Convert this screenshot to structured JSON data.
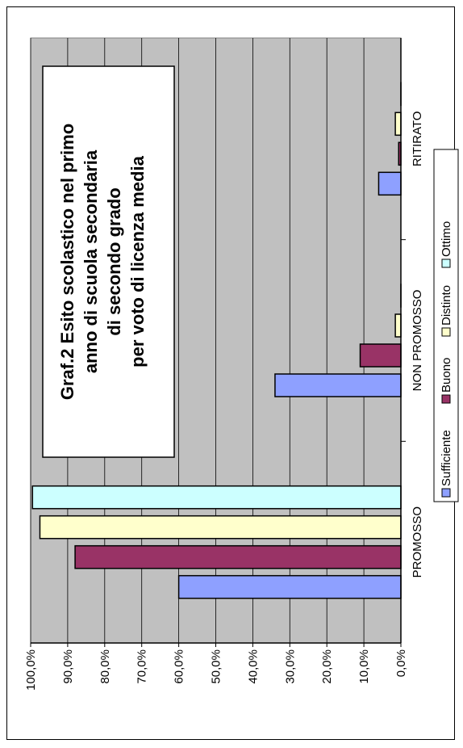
{
  "chart_data": {
    "type": "bar",
    "orientation": "rotated-90",
    "title_lines": [
      "Graf.2 Esito scolastico nel primo",
      "anno di scuola secondaria",
      "di secondo grado",
      "per voto di licenza media"
    ],
    "categories": [
      "PROMOSSO",
      "NON PROMOSSO",
      "RITIRATO"
    ],
    "series": [
      {
        "name": "Sufficiente",
        "color": "#8ea0ff",
        "values": [
          60.0,
          34.0,
          6.0
        ]
      },
      {
        "name": "Buono",
        "color": "#993366",
        "values": [
          88.0,
          11.0,
          0.6
        ]
      },
      {
        "name": "Distinto",
        "color": "#ffffcc",
        "values": [
          97.5,
          1.5,
          1.5
        ]
      },
      {
        "name": "Ottimo",
        "color": "#ccffff",
        "values": [
          99.5,
          0.0,
          0.0
        ]
      }
    ],
    "ylim": [
      0,
      100
    ],
    "yticks": [
      "0,0%",
      "10,0%",
      "20,0%",
      "30,0%",
      "40,0%",
      "50,0%",
      "60,0%",
      "70,0%",
      "80,0%",
      "90,0%",
      "100,0%"
    ],
    "grid": true,
    "plot_background": "#c0c0c0",
    "legend_position": "bottom"
  }
}
